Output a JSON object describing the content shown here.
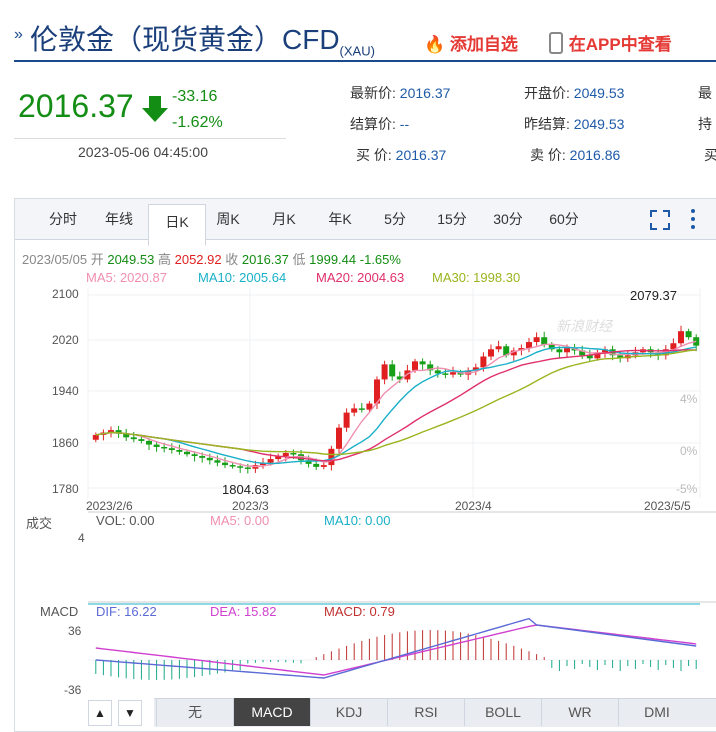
{
  "header": {
    "title_main": "伦敦金（现货黄金）CFD",
    "title_sub": "(XAU)",
    "add_watchlist": "添加自选",
    "open_app": "在APP中查看"
  },
  "quote": {
    "price": "2016.37",
    "change": "-33.16",
    "change_pct": "-1.62%",
    "datetime": "2023-05-06 04:45:00",
    "latest_label": "最新价:",
    "latest": "2016.37",
    "open_label": "开盘价:",
    "open": "2049.53",
    "settle_label": "结算价:",
    "settle": "--",
    "prev_settle_label": "昨结算:",
    "prev_settle": "2049.53",
    "buy_label": "买  价:",
    "buy": "2016.37",
    "sell_label": "卖  价:",
    "sell": "2016.86",
    "cut1": "最",
    "cut2": "持",
    "cut3": "买"
  },
  "tabs": [
    "分时",
    "年线",
    "日K",
    "周K",
    "月K",
    "年K",
    "5分",
    "15分",
    "30分",
    "60分"
  ],
  "active_tab": "日K",
  "ohlc": {
    "date": "2023/05/05",
    "open_l": "开",
    "open": "2049.53",
    "high_l": "高",
    "high": "2052.92",
    "close_l": "收",
    "close": "2016.37",
    "low_l": "低",
    "low": "1999.44",
    "pct": "-1.65%"
  },
  "ma": {
    "ma5": "MA5: 2020.87",
    "ma10": "MA10: 2005.64",
    "ma20": "MA20: 2004.63",
    "ma30": "MA30: 1998.30",
    "c5": "#f08fb0",
    "c10": "#1ab0c8",
    "c20": "#e0306a",
    "c30": "#9ab520"
  },
  "watermark": "新浪财经",
  "y_axis": [
    "2100",
    "2020",
    "1940",
    "1860",
    "1780"
  ],
  "pct_axis": [
    "4%",
    "0%",
    "-5%"
  ],
  "x_axis": [
    "2023/2/6",
    "2023/3",
    "2023/4",
    "2023/5/5"
  ],
  "max_label": "2079.37",
  "min_label": "1804.63",
  "volume": {
    "label": "成交",
    "vol": "VOL: 0.00",
    "ma5": "MA5: 0.00",
    "ma10": "MA10: 0.00",
    "axis": "4"
  },
  "macd": {
    "label": "MACD",
    "dif": "DIF: 16.22",
    "dea": "DEA: 15.82",
    "macd": "MACD: 0.79",
    "top": "36",
    "bottom": "-36"
  },
  "bottom_buttons": [
    "无",
    "MACD",
    "KDJ",
    "RSI",
    "BOLL",
    "WR",
    "DMI"
  ],
  "active_indicator": "MACD",
  "colors": {
    "up": "#e02020",
    "down": "#17a017",
    "link": "#1e5aa8"
  }
}
